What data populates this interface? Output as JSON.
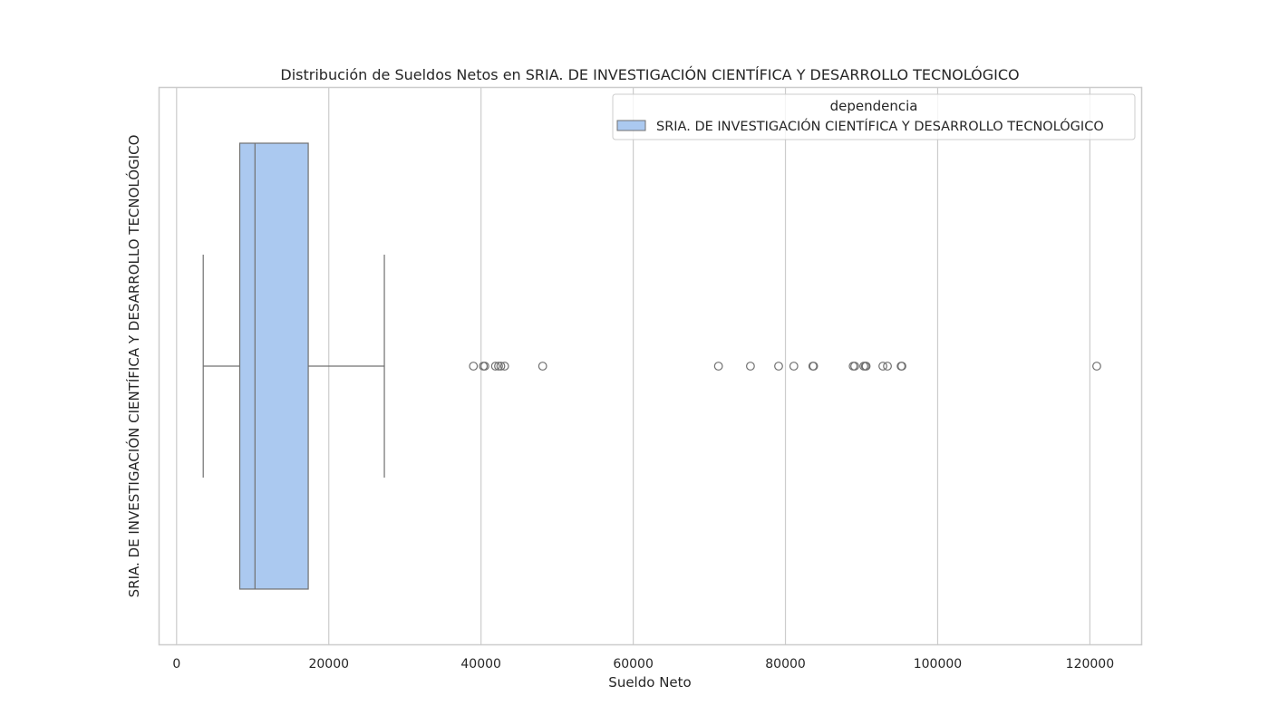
{
  "chart_data": {
    "type": "boxplot",
    "orientation": "horizontal",
    "title": "Distribución de Sueldos Netos en SRIA. DE INVESTIGACIÓN CIENTÍFICA Y DESARROLLO TECNOLÓGICO",
    "xlabel": "Sueldo Neto",
    "ylabel": "SRIA. DE INVESTIGACIÓN CIENTÍFICA Y DESARROLLO TECNOLÓGICO",
    "xlim": [
      -2300,
      126800
    ],
    "xticks": [
      0,
      20000,
      40000,
      60000,
      80000,
      100000,
      120000
    ],
    "grid": "vertical",
    "legend": {
      "title": "dependencia",
      "placement": "top-right",
      "entries": [
        "SRIA. DE INVESTIGACIÓN CIENTÍFICA Y DESARROLLO TECNOLÓGICO"
      ]
    },
    "series": [
      {
        "name": "SRIA. DE INVESTIGACIÓN CIENTÍFICA Y DESARROLLO TECNOLÓGICO",
        "color": "#abc9f0",
        "whisker_low": 3500,
        "q1": 8300,
        "median": 10300,
        "q3": 17300,
        "whisker_high": 27300,
        "outliers": [
          39000,
          40300,
          40500,
          41900,
          42300,
          42600,
          43100,
          48100,
          71200,
          75400,
          79100,
          81100,
          83600,
          83700,
          88900,
          89100,
          90300,
          90500,
          90600,
          92800,
          93400,
          95200,
          95300,
          120900
        ]
      }
    ]
  }
}
